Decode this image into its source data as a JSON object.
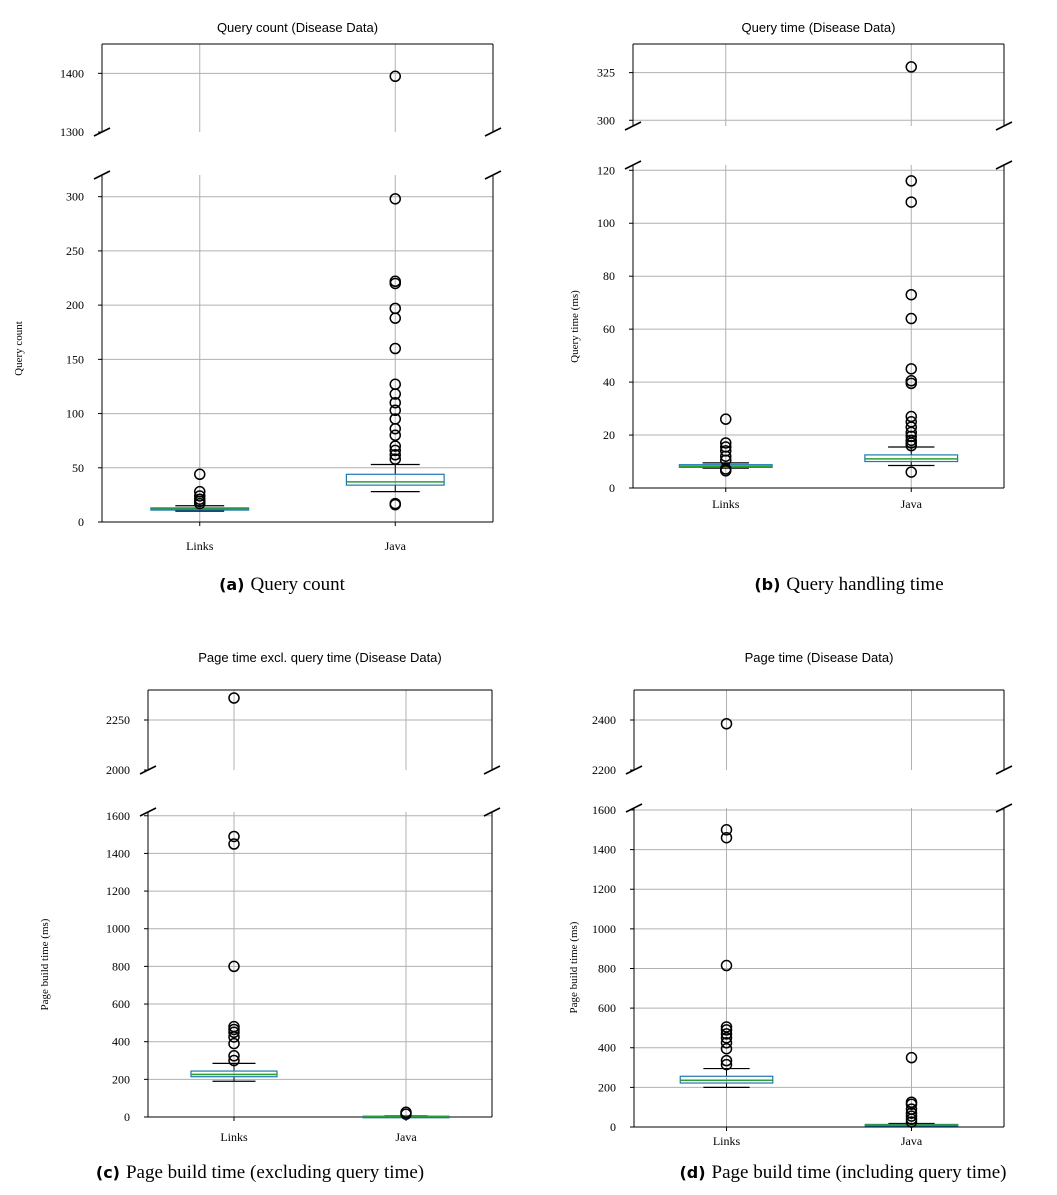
{
  "chart_data": [
    {
      "type": "boxplot",
      "title": "Query count (Disease Data)",
      "ylabel": "Query count",
      "categories": [
        "Links",
        "Java"
      ],
      "caption": {
        "letter": "(a)",
        "text": "Query count"
      },
      "y_break": {
        "upper_ylim": [
          1300,
          1450
        ],
        "lower_ylim": [
          0,
          320
        ],
        "upper_ticks": [
          1300,
          1400
        ],
        "lower_ticks": [
          0,
          50,
          100,
          150,
          200,
          250,
          300
        ]
      },
      "grid": true,
      "boxes": [
        {
          "category": "Links",
          "q1": 11,
          "median": 12,
          "q3": 13,
          "whisker_low": 10,
          "whisker_high": 15,
          "outliers": [
            17,
            19,
            21,
            24,
            28,
            44
          ]
        },
        {
          "category": "Java",
          "q1": 34,
          "median": 37,
          "q3": 44,
          "whisker_low": 28,
          "whisker_high": 53,
          "outliers": [
            16,
            17,
            58,
            62,
            66,
            70,
            80,
            86,
            95,
            103,
            110,
            118,
            127,
            160,
            188,
            197,
            220,
            222,
            298,
            1395
          ]
        }
      ]
    },
    {
      "type": "boxplot",
      "title": "Query time (Disease Data)",
      "ylabel": "Query time (ms)",
      "categories": [
        "Links",
        "Java"
      ],
      "caption": {
        "letter": "(b)",
        "text": "Query handling time"
      },
      "y_break": {
        "upper_ylim": [
          297,
          340
        ],
        "lower_ylim": [
          0,
          122
        ],
        "upper_ticks": [
          300,
          325
        ],
        "lower_ticks": [
          0,
          20,
          40,
          60,
          80,
          100,
          120
        ]
      },
      "grid": true,
      "boxes": [
        {
          "category": "Links",
          "q1": 7.8,
          "median": 8.2,
          "q3": 8.8,
          "whisker_low": 7.5,
          "whisker_high": 9.5,
          "outliers": [
            6.5,
            7.2,
            10.5,
            12,
            14,
            15.5,
            17,
            26
          ]
        },
        {
          "category": "Java",
          "q1": 10,
          "median": 11,
          "q3": 12.5,
          "whisker_low": 8.5,
          "whisker_high": 15.5,
          "outliers": [
            6,
            16,
            17,
            18,
            19.5,
            21,
            23,
            25,
            27,
            39.5,
            40.5,
            45,
            64,
            73,
            108,
            116,
            328
          ]
        }
      ]
    },
    {
      "type": "boxplot",
      "title": "Page time excl. query time (Disease Data)",
      "ylabel": "Page build time (ms)",
      "categories": [
        "Links",
        "Java"
      ],
      "caption": {
        "letter": "(c)",
        "text": "Page build time (excluding query time)"
      },
      "y_break": {
        "upper_ylim": [
          2000,
          2400
        ],
        "lower_ylim": [
          0,
          1620
        ],
        "upper_ticks": [
          2000,
          2250
        ],
        "lower_ticks": [
          0,
          200,
          400,
          600,
          800,
          1000,
          1200,
          1400,
          1600
        ]
      },
      "grid": true,
      "boxes": [
        {
          "category": "Links",
          "q1": 214,
          "median": 226,
          "q3": 244,
          "whisker_low": 190,
          "whisker_high": 285,
          "outliers": [
            300,
            325,
            390,
            425,
            450,
            465,
            480,
            800,
            1450,
            1490,
            2360
          ]
        },
        {
          "category": "Java",
          "q1": 2,
          "median": 3,
          "q3": 4,
          "whisker_low": 1,
          "whisker_high": 6,
          "outliers": [
            15,
            25
          ]
        }
      ]
    },
    {
      "type": "boxplot",
      "title": "Page time (Disease Data)",
      "ylabel": "Page build time (ms)",
      "categories": [
        "Links",
        "Java"
      ],
      "caption": {
        "letter": "(d)",
        "text": "Page build time (including query time)"
      },
      "y_break": {
        "upper_ylim": [
          2200,
          2520
        ],
        "lower_ylim": [
          0,
          1610
        ],
        "upper_ticks": [
          2200,
          2400
        ],
        "lower_ticks": [
          0,
          200,
          400,
          600,
          800,
          1000,
          1200,
          1400,
          1600
        ]
      },
      "grid": true,
      "boxes": [
        {
          "category": "Links",
          "q1": 222,
          "median": 236,
          "q3": 256,
          "whisker_low": 200,
          "whisker_high": 295,
          "outliers": [
            315,
            335,
            395,
            425,
            450,
            470,
            490,
            505,
            815,
            1460,
            1500,
            2385
          ]
        },
        {
          "category": "Java",
          "q1": 8,
          "median": 10,
          "q3": 13,
          "whisker_low": 5,
          "whisker_high": 18,
          "outliers": [
            25,
            40,
            55,
            70,
            90,
            115,
            125,
            350
          ]
        }
      ]
    }
  ]
}
